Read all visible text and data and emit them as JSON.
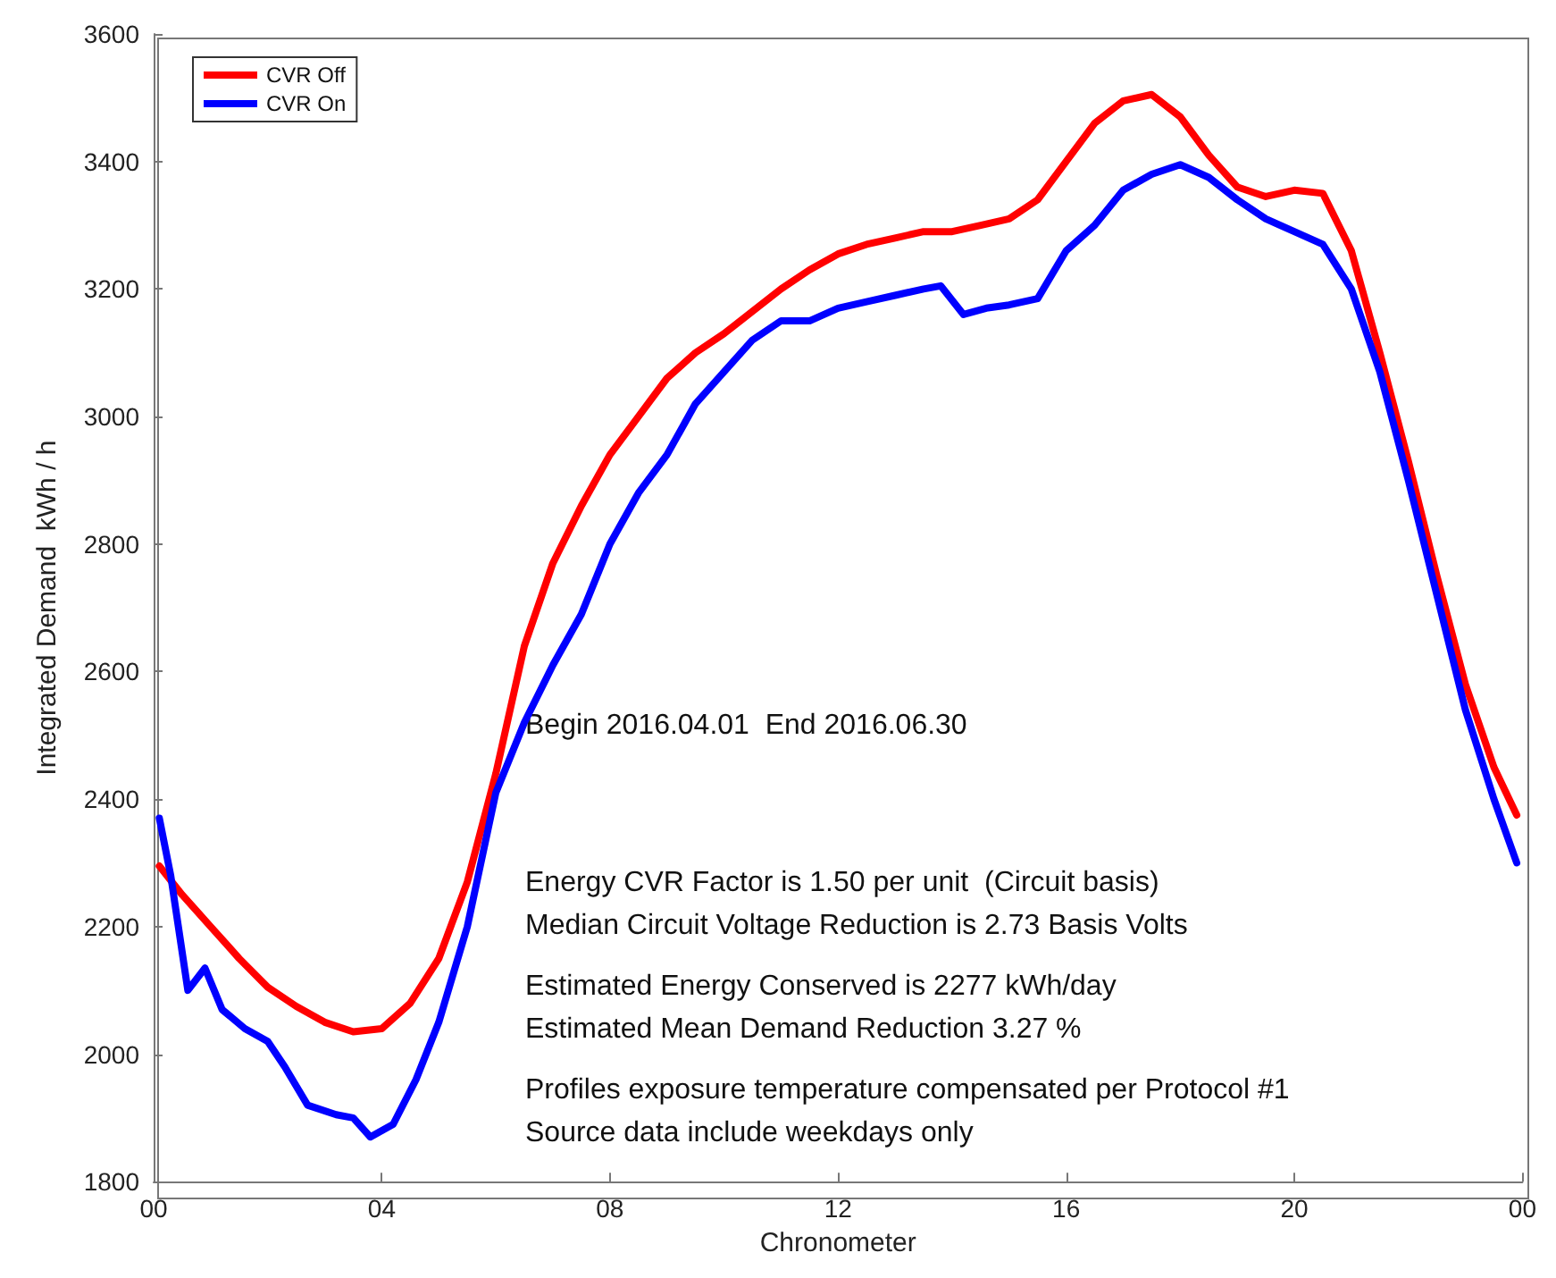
{
  "chart_data": {
    "type": "line",
    "xlabel": "Chronometer",
    "ylabel": "Integrated Demand  kWh / h",
    "xlim": [
      0,
      24
    ],
    "xticks": [
      {
        "value": 0,
        "label": "00"
      },
      {
        "value": 4,
        "label": "04"
      },
      {
        "value": 8,
        "label": "08"
      },
      {
        "value": 12,
        "label": "12"
      },
      {
        "value": 16,
        "label": "16"
      },
      {
        "value": 20,
        "label": "20"
      },
      {
        "value": 24,
        "label": "00"
      }
    ],
    "ylim": [
      1800,
      3600
    ],
    "yticks": [
      1800,
      2000,
      2200,
      2400,
      2600,
      2800,
      3000,
      3200,
      3400,
      3600
    ],
    "grid": false,
    "legend": "top left",
    "marker": "none",
    "line_style": "solid",
    "annotations": [
      "Begin 2016.04.01  End 2016.06.30",
      "Energy CVR Factor is 1.50 per unit  (Circuit basis)",
      "Median Circuit Voltage Reduction is 2.73 Basis Volts",
      "Estimated Energy Conserved is 2277 kWh/day",
      "Estimated Mean Demand Reduction 3.27 %",
      "Profiles exposure temperature compensated per Protocol #1",
      "Source data include weekdays only"
    ],
    "series": [
      {
        "name": "CVR Off",
        "color": "#ff0000",
        "x": [
          0.1,
          0.5,
          1,
          1.5,
          2,
          2.5,
          3,
          3.5,
          4,
          4.5,
          5,
          5.5,
          6,
          6.5,
          7,
          7.5,
          8,
          8.5,
          9,
          9.5,
          10,
          10.5,
          11,
          11.5,
          12,
          12.5,
          13,
          13.5,
          14,
          14.5,
          15,
          15.5,
          16,
          16.5,
          17,
          17.5,
          18,
          18.5,
          19,
          19.5,
          20,
          20.5,
          21,
          21.5,
          22,
          22.5,
          23,
          23.5,
          23.9
        ],
        "values": [
          2295,
          2250,
          2200,
          2150,
          2105,
          2075,
          2050,
          2035,
          2040,
          2080,
          2150,
          2270,
          2440,
          2640,
          2770,
          2860,
          2940,
          3000,
          3060,
          3100,
          3130,
          3165,
          3200,
          3230,
          3255,
          3270,
          3280,
          3290,
          3290,
          3300,
          3310,
          3340,
          3400,
          3460,
          3495,
          3505,
          3470,
          3410,
          3360,
          3345,
          3355,
          3350,
          3260,
          3100,
          2930,
          2750,
          2580,
          2450,
          2375
        ]
      },
      {
        "name": "CVR On",
        "color": "#0000ff",
        "x": [
          0.1,
          0.3,
          0.6,
          0.9,
          1.2,
          1.6,
          2,
          2.3,
          2.7,
          3.2,
          3.5,
          3.8,
          4.2,
          4.6,
          5,
          5.5,
          6,
          6.5,
          7,
          7.5,
          8,
          8.5,
          9,
          9.5,
          10,
          10.5,
          11,
          11.5,
          12,
          12.5,
          13,
          13.5,
          13.8,
          14.2,
          14.6,
          15,
          15.5,
          16,
          16.5,
          17,
          17.5,
          18,
          18.5,
          19,
          19.5,
          20,
          20.5,
          21,
          21.5,
          22,
          22.5,
          23,
          23.5,
          23.9
        ],
        "values": [
          2370,
          2280,
          2100,
          2135,
          2070,
          2040,
          2020,
          1980,
          1920,
          1905,
          1900,
          1870,
          1890,
          1960,
          2050,
          2200,
          2410,
          2520,
          2610,
          2690,
          2800,
          2880,
          2940,
          3020,
          3070,
          3120,
          3150,
          3150,
          3170,
          3180,
          3190,
          3200,
          3205,
          3160,
          3170,
          3175,
          3185,
          3260,
          3300,
          3355,
          3380,
          3395,
          3375,
          3340,
          3310,
          3290,
          3270,
          3200,
          3070,
          2900,
          2720,
          2540,
          2400,
          2300
        ]
      }
    ]
  }
}
